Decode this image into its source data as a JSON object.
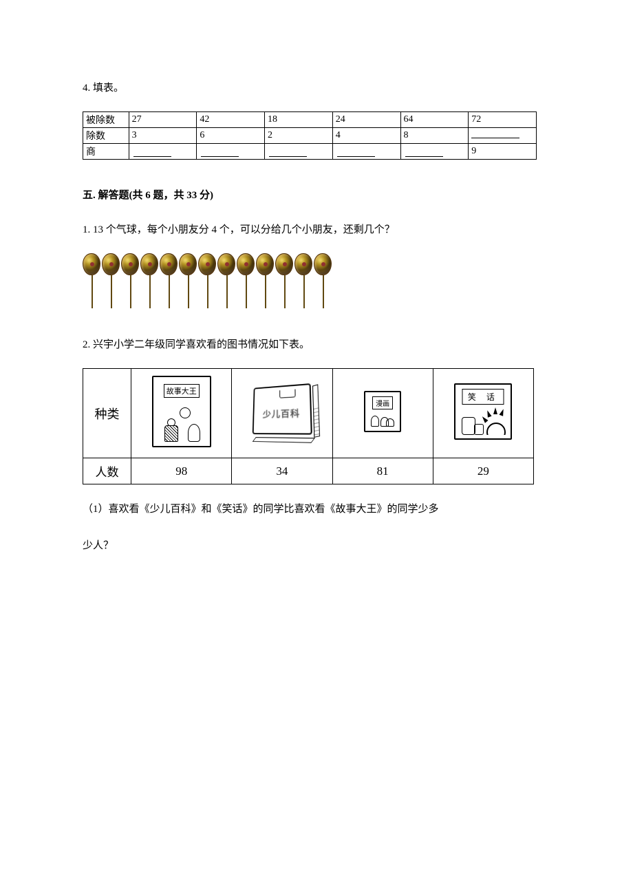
{
  "q4": {
    "label": "4. 填表。",
    "row_labels": [
      "被除数",
      "除数",
      "商"
    ],
    "dividend": [
      "27",
      "42",
      "18",
      "24",
      "64",
      "72"
    ],
    "divisor": [
      "3",
      "6",
      "2",
      "4",
      "8",
      ""
    ],
    "quotient": [
      "",
      "",
      "",
      "",
      "",
      "9"
    ]
  },
  "section5": {
    "heading": "五. 解答题(共 6 题，共 33 分)"
  },
  "q5_1": {
    "text": "1. 13 个气球，每个小朋友分 4 个，可以分给几个小朋友，还剩几个？",
    "balloon_count": 13,
    "balloon_colors": {
      "highlight": "#e8d060",
      "mid": "#b09020",
      "dark": "#604810"
    }
  },
  "q5_2": {
    "text": "2. 兴宇小学二年级同学喜欢看的图书情况如下表。",
    "row_labels": [
      "种类",
      "人数"
    ],
    "books": [
      {
        "title": "故事大王",
        "count": "98"
      },
      {
        "title": "少儿百科",
        "count": "34"
      },
      {
        "title": "漫画",
        "count": "81"
      },
      {
        "title": "笑 话",
        "count": "29"
      }
    ],
    "sub1_l1": "（1）喜欢看《少儿百科》和《笑话》的同学比喜欢看《故事大王》的同学少多",
    "sub1_l2": "少人？"
  },
  "style": {
    "text_color": "#000000",
    "bg_color": "#ffffff",
    "font_size_body": 15,
    "font_size_table": 14,
    "font_size_booknum": 17,
    "font_size_booklabel": 18,
    "border_color": "#000000"
  }
}
